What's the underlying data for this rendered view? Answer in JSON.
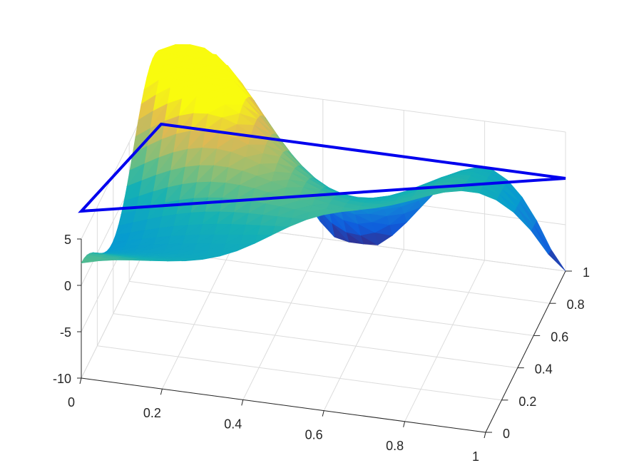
{
  "chart_data": {
    "type": "surface",
    "title": "",
    "xlabel": "",
    "ylabel": "",
    "zlabel": "",
    "grid": true,
    "colormap": "parula",
    "xlim": [
      0,
      1
    ],
    "ylim": [
      0,
      1
    ],
    "zlim": [
      -10,
      5
    ],
    "x_ticks": [
      0,
      0.2,
      0.4,
      0.6,
      0.8,
      1
    ],
    "x_tick_labels": [
      "0",
      "0.2",
      "0.4",
      "0.6",
      "0.8",
      "1"
    ],
    "y_ticks": [
      0,
      0.2,
      0.4,
      0.6,
      0.8,
      1
    ],
    "y_tick_labels": [
      "0",
      "0.2",
      "0.4",
      "0.6",
      "0.8",
      "1"
    ],
    "z_ticks": [
      -10,
      -5,
      0,
      5
    ],
    "z_tick_labels": [
      "-10",
      "-5",
      "0",
      "5"
    ],
    "triangle": {
      "color": "#0000ee",
      "vertices": [
        [
          0,
          1,
          0
        ],
        [
          0,
          0,
          8
        ],
        [
          1,
          1,
          0
        ]
      ]
    },
    "surface": {
      "domain": "triangle x+y... with vertices (0,0),(0,1),(1,1)",
      "peak": {
        "x": 0,
        "y": 0,
        "z": 8
      },
      "edge_x0_samples": [
        [
          0,
          8
        ],
        [
          0.2,
          1.5
        ],
        [
          0.5,
          4.5
        ],
        [
          0.75,
          5.5
        ],
        [
          0.9,
          0
        ],
        [
          1,
          -7
        ]
      ],
      "edge_y1_samples": [
        [
          0,
          -7
        ],
        [
          0.1,
          -2
        ],
        [
          0.2,
          0
        ],
        [
          0.3,
          0
        ],
        [
          0.4,
          -4
        ],
        [
          0.55,
          -8
        ],
        [
          0.7,
          -4
        ],
        [
          0.85,
          0
        ],
        [
          0.9,
          0
        ],
        [
          1,
          -10
        ]
      ],
      "hypotenuse_samples": [
        [
          0,
          8
        ],
        [
          0.25,
          3
        ],
        [
          0.5,
          2.5
        ],
        [
          0.75,
          3
        ],
        [
          0.9,
          0
        ],
        [
          1,
          -10
        ]
      ]
    }
  }
}
